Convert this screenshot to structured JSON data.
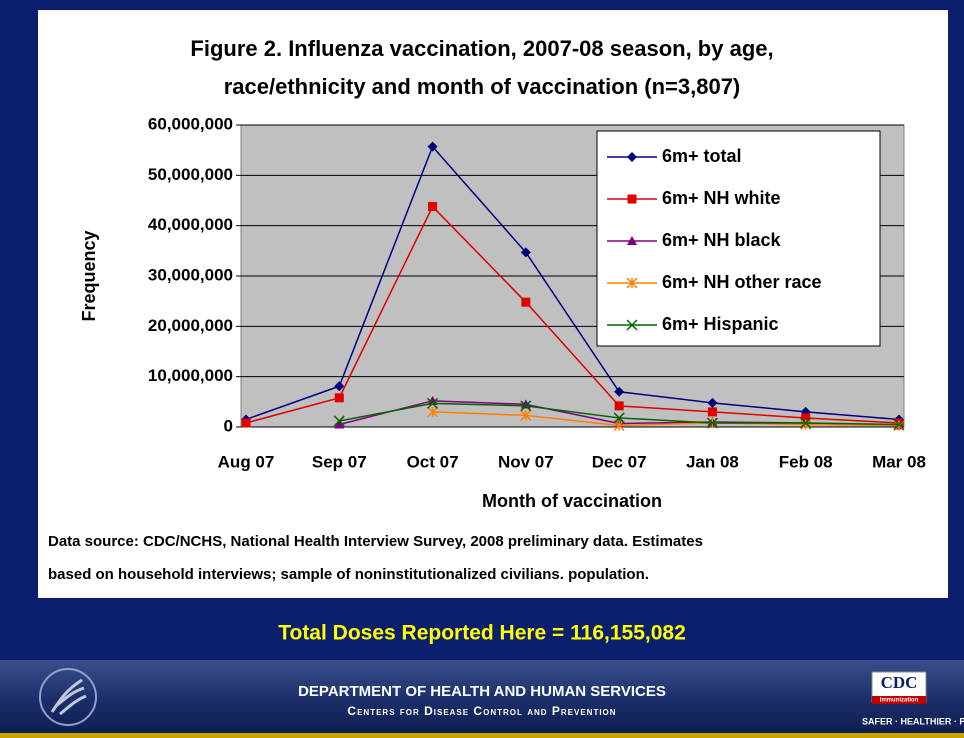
{
  "chart_data": {
    "type": "line",
    "title": [
      "Figure 2.  Influenza vaccination, 2007-08 season, by age,",
      "race/ethnicity and month of vaccination (n=3,807)"
    ],
    "x_label": "Month of vaccination",
    "y_label": "Frequency",
    "categories": [
      "Aug 07",
      "Sep 07",
      "Oct 07",
      "Nov 07",
      "Dec 07",
      "Jan 08",
      "Feb 08",
      "Mar 08"
    ],
    "series": [
      {
        "name": "6m+ total",
        "color": "#000080",
        "marker": "diamond",
        "values": [
          1500000,
          8100000,
          55700000,
          34700000,
          7000000,
          4800000,
          3000000,
          1500000
        ]
      },
      {
        "name": "6m+ NH white",
        "color": "#e00000",
        "marker": "square",
        "values": [
          800000,
          5800000,
          43800000,
          24800000,
          4200000,
          3000000,
          1800000,
          800000
        ]
      },
      {
        "name": "6m+ NH black",
        "color": "#800080",
        "marker": "triangle",
        "values": [
          null,
          500000,
          5200000,
          4500000,
          700000,
          1000000,
          800000,
          300000
        ]
      },
      {
        "name": "6m+ NH other race",
        "color": "#ff8000",
        "marker": "asterisk",
        "values": [
          null,
          null,
          3000000,
          2300000,
          300000,
          800000,
          500000,
          300000
        ]
      },
      {
        "name": "6m+ Hispanic",
        "color": "#006400",
        "marker": "x",
        "values": [
          null,
          1200000,
          4700000,
          4200000,
          1800000,
          800000,
          800000,
          500000
        ]
      }
    ],
    "ylim": [
      0,
      60000000
    ],
    "yticks": [
      0,
      {
        "value": 10000000,
        "label": "10,000,000"
      },
      {
        "value": 20000000,
        "label": "20,000,000"
      },
      {
        "value": 30000000,
        "label": "30,000,000"
      },
      {
        "value": 40000000,
        "label": "40,000,000"
      },
      {
        "value": 50000000,
        "label": "50,000,000"
      },
      {
        "value": 60000000,
        "label": "60,000,000"
      }
    ],
    "grid": true,
    "legend": "upper right",
    "note": [
      "Data source: CDC/NCHS, National Health Interview Survey, 2008 preliminary data.  Estimates",
      "based on household interviews; sample of noninstitutionalized civilians. population."
    ]
  },
  "banner": "Total Doses Reported Here = 116,155,082",
  "footer": {
    "department": "DEPARTMENT OF HEALTH AND HUMAN SERVICES",
    "agency": "Centers for Disease Control and Prevention",
    "logo": "CDC",
    "logo_sub": "Immunization",
    "tagline": "SAFER · HEALTHIER · PEOPL"
  }
}
